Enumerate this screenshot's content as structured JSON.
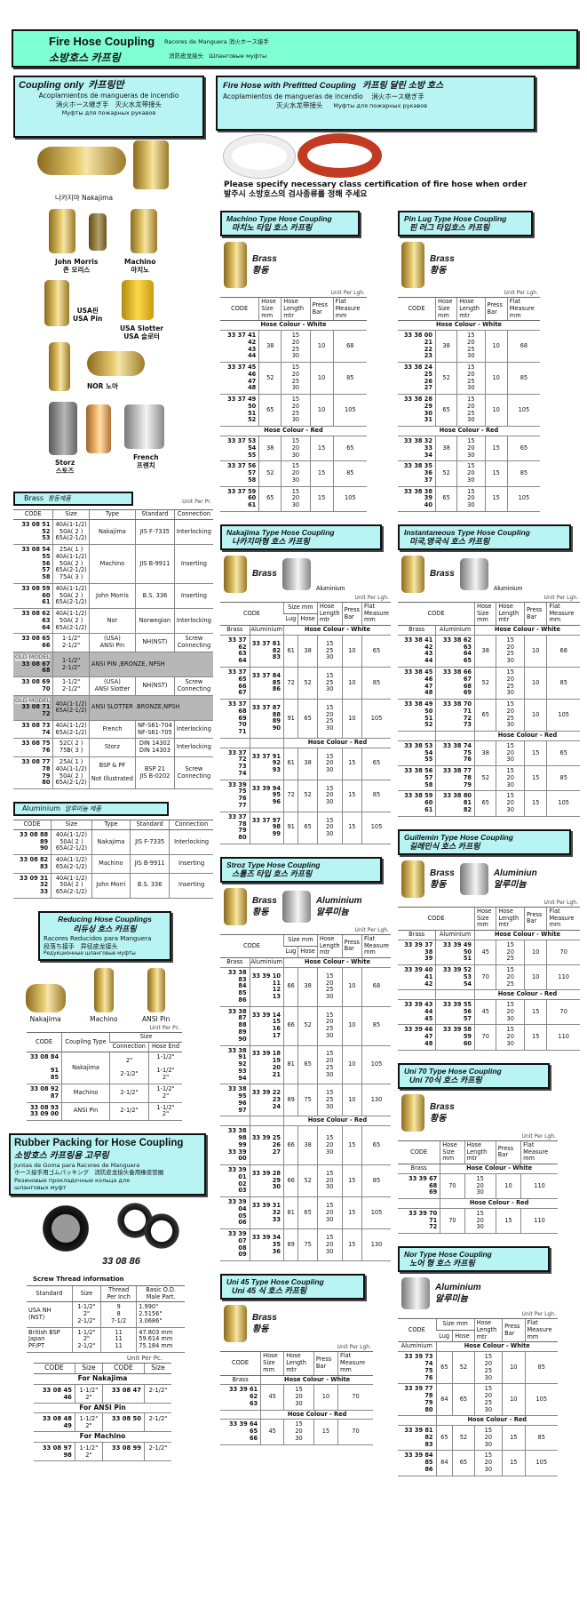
{
  "header": {
    "title_en": "Fire Hose Coupling",
    "title_ko": "소방호스 카프링",
    "sub_es": "Racores de Manguera",
    "sub_ja": "消火ホース接手",
    "sub_zh": "消防皮龙接头",
    "sub_ru": "Шланговые муфты"
  },
  "coupling_only": {
    "title_en": "Coupling only",
    "title_ko": "카프링만",
    "es": "Acoplamientos de mangueras de incendio",
    "ja": "消火ホース継ぎ手",
    "zh": "灭火水龙带接头",
    "ru": "Муфты для пожарных рукавов"
  },
  "prefitted": {
    "title_en": "Fire Hose with Prefitted Coupling",
    "title_ko": "카프링 달린 소방 호스",
    "es": "Acoplamientos de mangueras de incendio",
    "ja": "消火ホース継ぎ手",
    "zh": "灭火水龙带接头",
    "ru": "Муфты для пожарных рукавов"
  },
  "notice": {
    "en": "Please specify necessary class certification of fire hose when order",
    "ko": "발주시 소방호스의 검사종류를 정해 주세요"
  },
  "coupling_images": [
    "나카지마  Nakajima",
    "John Morris\n존 모리스",
    "Machino\n마치노",
    "USA핀\nUSA Pin",
    "USA Slotter\nUSA 슬로터",
    "NOR 노아",
    "Storz\n스토즈",
    "French\n프렌치"
  ],
  "brass": {
    "title": "Brass",
    "title_ko": "황동제품",
    "unit": "Unit Per Pr.",
    "columns": [
      "CODE",
      "Size",
      "Type",
      "Standard",
      "Connection"
    ],
    "rows": [
      [
        "33 08 51\n52\n53",
        "40A(1-1/2)\n50A( 2 )\n65A(2-1/2)",
        "Nakajima",
        "JIS F-7335",
        "Interlocking"
      ],
      [
        "33 08 54\n55\n56\n57\n58",
        "25A( 1 )\n40A(1-1/2)\n50A( 2 )\n65A(2-1/2)\n75A( 3 )",
        "Machino",
        "JIS B-9911",
        "Inserting"
      ],
      [
        "33 08 59\n60\n61",
        "40A(1-1/2)\n50A( 2 )\n65A(2-1/2)",
        "John Morris",
        "B.S. 336",
        "Inserting"
      ],
      [
        "33 08 62\n63\n64",
        "40A(1-1/2)\n50A( 2 )\n65A(2-1/2)",
        "Nor",
        "Norwegian",
        "Interlocking"
      ],
      [
        "33 08 65\n66",
        "1-1/2\"\n2-1/2\"",
        "(USA)\nANSI Pin",
        "NH(NST)",
        "Screw\nConnecting"
      ],
      {
        "old": "OLD MODEL",
        "code": "33 08 67\n68",
        "size": "1-1/2\"\n2-1/2\"",
        "note": "ANSI PIN ,BRONZE, NPSH"
      },
      [
        "33 08 69\n70",
        "1-1/2\"\n2-1/2\"",
        "(USA)\nANSI Slotter",
        "NH(NST)",
        "Screw\nConnecting"
      ],
      {
        "old": "OLD MODEL",
        "code": "33 08 71\n72",
        "size": "40A(1-1/2)\n65A(2-1/2)",
        "note": "ANSI SLOTTER  .BRONZE,NPSH"
      },
      [
        "33 08 73\n74",
        "40A(1-1/2)\n65A(2-1/2)",
        "French",
        "NF-S61-704\nNF-S61-705",
        "Interlocking"
      ],
      [
        "33 08 75\n76",
        "52C( 2 )\n75B( 3 )",
        "Storz",
        "DIN 14302\nDIN 14303",
        "Interlocking"
      ],
      [
        "33 08 77\n78\n79\n80",
        "25A( 1 )\n40A(1-1/2)\n50A( 2 )\n65A(2-1/2)",
        "BSP & PF\n\nNot Illustrated",
        "BSP 21\nJIS B-0202",
        "Screw\nConnecting"
      ]
    ]
  },
  "aluminium": {
    "title": "Aluminium",
    "title_ko": "알루미늄 제품",
    "columns": [
      "CODE",
      "Size",
      "Type",
      "Standard",
      "Connection"
    ],
    "rows": [
      [
        "33 08 88\n89\n90",
        "40A(1-1/2)\n50A( 2 )\n65A(2-1/2)",
        "Nakajima",
        "JIS F-7335",
        "Interlocking"
      ],
      [
        "33 08 82\n83",
        "40A(1-1/2)\n65A(2-1/2)",
        "Machino",
        "JIS B-9911",
        "Inserting"
      ],
      [
        "33 09 31\n32\n33",
        "40A(1-1/2)\n50A( 2 )\n65A(2-1/2)",
        "John Morri",
        "B.S. 336",
        "Inserting"
      ]
    ]
  },
  "reducing": {
    "title_en": "Reducing Hose Couplings",
    "title_ko": "리듀싱 호스 카프링",
    "es": "Racores Reducidos para Manguera",
    "ja": "段落ち接手",
    "zh": "异径皮龙接头",
    "ru": "Редукционные шланговые муфты",
    "images": [
      "Nakajima",
      "Machino",
      "ANSI Pin"
    ],
    "unit": "Unit Per Pc.",
    "columns": {
      "code": "CODE",
      "type": "Coupling Type",
      "size": "Size",
      "connection": "Connection",
      "hose_end": "Hose End"
    },
    "rows": [
      [
        "33 08 84\n\n91\n85",
        "Nakajima",
        "2\"\n\n2-1/2\"",
        "1-1/2\"\n\n1-1/2\"\n2\""
      ],
      [
        "33 08 92\n87",
        "Machino",
        "2-1/2\"",
        "1-1/2\"\n2\""
      ],
      [
        "33 08 93\n33 09 00",
        "ANSI Pin",
        "2-1/2\"",
        "1-1/2\"\n2\""
      ]
    ]
  },
  "rubber": {
    "title_en": "Rubber Packing for Hose Coupling",
    "title_ko": "소방호스 카프링용 고무링",
    "es": "Juntas de Goma para Racores de Manguera",
    "ja": "ホース接手用ゴムパッキング",
    "zh": "消防皮龙接头备用橡皮垫圈",
    "ru": "Резиновые прокладочные кольца для шланговых муфт",
    "code": "33 08 86",
    "thread_title": "Screw Thread information",
    "thread_columns": [
      "Standard",
      "Size",
      "Thread\nPer Inch",
      "Basic O.D.\nMale Part."
    ],
    "thread_rows": [
      [
        "USA NH\n(NST)",
        "1-1/2\"\n2\"\n2-1/2\"",
        "9\n8\n7-1/2",
        "1.990\"\n2.5156\"\n3.0686\""
      ],
      [
        "British BSP\nJapan\nPF/PT",
        "1-1/2\"\n2\"\n2-1/2\"",
        "11\n11\n11",
        "47.803 mm\n59.614 mm\n75.184 mm"
      ]
    ],
    "unit": "Unit Per Pc.",
    "code_columns": [
      "CODE",
      "Size",
      "CODE",
      "Size"
    ],
    "code_groups": [
      {
        "label": "For Nakajima",
        "row": [
          "33 08 45\n46",
          "1-1/2\"\n2\"",
          "33 08 47",
          "2-1/2\""
        ]
      },
      {
        "label": "For ANSI Pin",
        "row": [
          "33 08 48\n49",
          "1-1/2\"\n2\"",
          "33 08 50",
          "2-1/2\""
        ]
      },
      {
        "label": "For Machino",
        "row": [
          "33 08 97\n98",
          "1-1/2\"\n2\"",
          "33 08 99",
          "2-1/2\""
        ]
      }
    ]
  },
  "hose_tables": [
    {
      "id": "machino",
      "title_en": "Machino Type Hose Coupling",
      "title_ko": "마치노 타입 호스 카프링",
      "material": "Brass",
      "material_ko": "황동",
      "unit": "Unit Per Lgh.",
      "columns": [
        "CODE",
        "Hose\nSize\nmm",
        "Hose\nLength\nmtr",
        "Press\nBar",
        "Flat\nMeasure\nmm"
      ],
      "materials": [],
      "groups": [
        {
          "label": "Hose Colour - White",
          "rows": [
            [
              "33 37 41\n42\n43\n44",
              "38",
              "15\n20\n25\n30",
              "10",
              "68"
            ],
            [
              "33 37 45\n46\n47\n48",
              "52",
              "15\n20\n25\n30",
              "10",
              "85"
            ],
            [
              "33 37 49\n50\n51\n52",
              "65",
              "15\n20\n25\n30",
              "10",
              "105"
            ]
          ]
        },
        {
          "label": "Hose Colour - Red",
          "rows": [
            [
              "33 37 53\n54\n55",
              "38",
              "15\n20\n30",
              "15",
              "65"
            ],
            [
              "33 37 56\n57\n58",
              "52",
              "15\n20\n30",
              "15",
              "85"
            ],
            [
              "33 37 59\n60\n61",
              "65",
              "15\n20\n30",
              "15",
              "105"
            ]
          ]
        }
      ]
    },
    {
      "id": "pinlug",
      "title_en": "Pin Lug Type Hose Coupling",
      "title_ko": "핀 러그 타입호스 카프링",
      "material": "Brass",
      "material_ko": "황동",
      "unit": "Unit Per Lgh.",
      "columns": [
        "CODE",
        "Hose\nSize\nmm",
        "Hose\nLength\nmtr",
        "Press\nBar",
        "Flat\nMeasure\nmm"
      ],
      "materials": [],
      "groups": [
        {
          "label": "Hose Colour - White",
          "rows": [
            [
              "33 38 00\n21\n22\n23",
              "38",
              "15\n20\n25\n30",
              "10",
              "68"
            ],
            [
              "33 38 24\n25\n26\n27",
              "52",
              "15\n20\n25\n30",
              "10",
              "85"
            ],
            [
              "33 38 28\n29\n30\n31",
              "65",
              "15\n20\n25\n30",
              "10",
              "105"
            ]
          ]
        },
        {
          "label": "Hose Colour - Red",
          "rows": [
            [
              "33 38 32\n33\n34",
              "38",
              "15\n20\n30",
              "15",
              "65"
            ],
            [
              "33 38 35\n36\n37",
              "52",
              "15\n20\n30",
              "15",
              "85"
            ],
            [
              "33 38 38\n39\n40",
              "65",
              "15\n20\n30",
              "15",
              "105"
            ]
          ]
        }
      ]
    },
    {
      "id": "nakajima",
      "title_en": "Nakajima Type Hose Coupling",
      "title_ko": "나카지마형 호스 카프링",
      "material": "Brass",
      "material2": "Aluminium",
      "unit": "Unit Per Lgh.",
      "columns": [
        "CODE",
        {
          "label": "Size mm",
          "sub": [
            "Lug",
            "Hose"
          ]
        },
        "Hose\nLength\nmtr",
        "Press\nBar",
        "Flat\nMeasure\nmm"
      ],
      "materials": [
        "Brass",
        "Aluminium"
      ],
      "groups": [
        {
          "label": "Hose Colour - White",
          "rows": [
            [
              "33 37 62\n63\n64",
              "33 37 81\n82\n83",
              "61",
              "38",
              "15\n25\n30",
              "10",
              "65"
            ],
            [
              "33 37 65\n66\n67",
              "33 37 84\n85\n86",
              "72",
              "52",
              "15\n25\n30",
              "10",
              "85"
            ],
            [
              "33 37 68\n69\n70\n71",
              "33 37 87\n88\n89\n90",
              "91",
              "65",
              "15\n20\n25\n30",
              "10",
              "105"
            ]
          ]
        },
        {
          "label": "Hose Colour - Red",
          "rows": [
            [
              "33 37 72\n73\n74",
              "33 37 91\n92\n93",
              "61",
              "38",
              "15\n20\n30",
              "15",
              "65"
            ],
            [
              "33 39 75\n76\n77",
              "33 39 94\n95\n96",
              "72",
              "52",
              "15\n20\n30",
              "15",
              "85"
            ],
            [
              "33 37 78\n79\n80",
              "33 37 97\n98\n99",
              "91",
              "65",
              "15\n20\n30",
              "15",
              "105"
            ]
          ]
        }
      ]
    },
    {
      "id": "instant",
      "title_en": "Instantaneous Type  Hose Coupling",
      "title_ko": "미국,영국식 호스 카프링",
      "material": "Brass",
      "material2": "Aluminium",
      "unit": "Unit Per Lgh.",
      "columns": [
        "CODE",
        "Hose\nSize\nmm",
        "Hose\nLength\nmtr",
        "Press\nBar",
        "Flat\nMeasure\nmm"
      ],
      "materials": [
        "Brass",
        "Aluminium"
      ],
      "groups": [
        {
          "label": "Hose Colour - White",
          "rows": [
            [
              "33 38 41\n42\n43\n44",
              "33 38 62\n63\n64\n65",
              "38",
              "15\n20\n25\n30",
              "10",
              "68"
            ],
            [
              "33 38 45\n46\n47\n48",
              "33 38 66\n67\n68\n69",
              "52",
              "15\n20\n25\n30",
              "10",
              "85"
            ],
            [
              "33 38 49\n50\n51\n52",
              "33 38 70\n71\n72\n73",
              "65",
              "15\n20\n25\n30",
              "10",
              "105"
            ]
          ]
        },
        {
          "label": "Hose Colour - Red",
          "rows": [
            [
              "33 38 53\n54\n55",
              "33 38 74\n75\n76",
              "38",
              "15\n20\n30",
              "15",
              "65"
            ],
            [
              "33 38 56\n57\n58",
              "33 38 77\n78\n79",
              "52",
              "15\n20\n30",
              "15",
              "85"
            ],
            [
              "33 38 59\n60\n61",
              "33 38 80\n81\n82",
              "65",
              "15\n20\n30",
              "15",
              "105"
            ]
          ]
        }
      ]
    },
    {
      "id": "stroz",
      "title_en": "Stroz Type Hose Coupling",
      "title_ko": "스톨즈 타입 호스 카프링",
      "material": "Brass",
      "material_ko": "황동",
      "material2": "Aluminium",
      "material2_ko": "알루미늄",
      "unit": "Unit Per Lgh.",
      "columns": [
        "CODE",
        {
          "label": "Size mm",
          "sub": [
            "Lug",
            "Hose"
          ]
        },
        "Hose\nLength\nmtr",
        "Press\nBar",
        "Flat\nMeasure\nmm"
      ],
      "materials": [
        "Brass",
        "Aluminium"
      ],
      "groups": [
        {
          "label": "Hose Colour - White",
          "rows": [
            [
              "33 38 83\n84\n85\n86",
              "33 39 10\n11\n12\n13",
              "66",
              "38",
              "15\n20\n25\n30",
              "10",
              "68"
            ],
            [
              "33 38 87\n88\n89\n90",
              "33 39 14\n15\n16\n17",
              "66",
              "52",
              "15\n20\n25\n30",
              "10",
              "85"
            ],
            [
              "33 38 91\n92\n93\n94",
              "33 39 18\n19\n20\n21",
              "81",
              "65",
              "15\n20\n25\n30",
              "10",
              "105"
            ],
            [
              "33 38 95\n96\n97",
              "33 39 22\n23\n24",
              "89",
              "75",
              "15\n25\n30",
              "10",
              "130"
            ]
          ]
        },
        {
          "label": "Hose Colour - Red",
          "rows": [
            [
              "33 38 98\n99\n33 39 00",
              "33 39 25\n26\n27",
              "66",
              "38",
              "15\n20\n30",
              "15",
              "65"
            ],
            [
              "33 39 01\n02\n03",
              "33 39 28\n29\n30",
              "66",
              "52",
              "15\n20\n30",
              "15",
              "85"
            ],
            [
              "33 39 04\n05\n06",
              "33 39 31\n32\n33",
              "81",
              "65",
              "15\n20\n30",
              "15",
              "105"
            ],
            [
              "33 39 07\n08\n09",
              "33 39 34\n35\n36",
              "89",
              "75",
              "15\n20\n30",
              "15",
              "130"
            ]
          ]
        }
      ]
    },
    {
      "id": "guillemin",
      "title_en": "Guillemin Type  Hose Coupling",
      "title_ko": "길레민식 호스 카프링",
      "material": "Brass",
      "material_ko": "황동",
      "material2": "Aluminiun",
      "material2_ko": "알루미늄",
      "unit": "Unit Per Lgh.",
      "columns": [
        "CODE",
        "Hose\nSize\nmm",
        "Hose\nLength\nmtr",
        "Press\nBar",
        "Flat\nMeasure\nmm"
      ],
      "materials": [
        "Brass",
        "Aluminium"
      ],
      "groups": [
        {
          "label": "Hose Colour - White",
          "rows": [
            [
              "33 39 37\n38\n39",
              "33 39 49\n50\n51",
              "45",
              "15\n20\n25",
              "10",
              "70"
            ],
            [
              "33 39 40\n41\n42",
              "33 39 52\n53\n54",
              "70",
              "15\n20\n25",
              "10",
              "110"
            ]
          ]
        },
        {
          "label": "Hose Colour - Red",
          "rows": [
            [
              "33 39 43\n44\n45",
              "33 39 55\n56\n57",
              "45",
              "15\n20\n30",
              "15",
              "70"
            ],
            [
              "33 39 46\n47\n48",
              "33 39 58\n59\n60",
              "70",
              "15\n20\n30",
              "15",
              "110"
            ]
          ]
        }
      ]
    },
    {
      "id": "uni70",
      "title_en": "Uni 70  Type  Hose Coupling",
      "title_ko": "Uni 70식 호스 카프링",
      "material": "Brass",
      "material_ko": "황동",
      "unit": "Unit Per Lgh.",
      "columns": [
        "CODE",
        "Hose\nSize\nmm",
        "Hose\nLength\nmtr",
        "Press\nBar",
        "Flat\nMeasure\nmm"
      ],
      "materials": [
        "Brass"
      ],
      "groups": [
        {
          "label": "Hose Colour - White",
          "rows": [
            [
              "33 39 67\n68\n69",
              "70",
              "15\n20\n30",
              "10",
              "110"
            ]
          ]
        },
        {
          "label": "Hose Colour - Red",
          "rows": [
            [
              "33 39 70\n71\n72",
              "70",
              "15\n20\n30",
              "15",
              "110"
            ]
          ]
        }
      ]
    },
    {
      "id": "uni45",
      "title_en": "Uni 45 Type Hose Coupling",
      "title_ko": "Uni 45 식 호스 카프링",
      "material": "Brass",
      "material_ko": "황동",
      "unit": "Unit Per Lgh.",
      "columns": [
        "CODE",
        "Hose\nSize\nmm",
        "Hose\nLength\nmtr",
        "Press\nBar",
        "Flat\nMeasure\nmm"
      ],
      "materials": [
        "Brass"
      ],
      "groups": [
        {
          "label": "Hose Colour - White",
          "rows": [
            [
              "33 39 61\n62\n63",
              "45",
              "15\n20\n30",
              "10",
              "70"
            ]
          ]
        },
        {
          "label": "Hose Colour - Red",
          "rows": [
            [
              "33 39 64\n65\n66",
              "45",
              "15\n20\n30",
              "15",
              "70"
            ]
          ]
        }
      ]
    },
    {
      "id": "nor",
      "title_en": "Nor Type Hose Coupling",
      "title_ko": "노어 형 호스 카프링",
      "material": "Aluminium",
      "material_ko": "알루미늄",
      "unit": "Unit Per Lgh.",
      "columns": [
        "CODE",
        {
          "label": "Size mm",
          "sub": [
            "Lug",
            "Hose"
          ]
        },
        "Hose\nLength\nmtr",
        "Press\nBar",
        "Flat\nMeasure\nmm"
      ],
      "materials": [
        "Aluminium"
      ],
      "groups": [
        {
          "label": "Hose Colour - White",
          "rows": [
            [
              "33 39 73\n74\n75\n76",
              "65",
              "52",
              "15\n20\n25\n30",
              "10",
              "85"
            ],
            [
              "33 39 77\n78\n79\n80",
              "84",
              "65",
              "15\n20\n25\n30",
              "10",
              "105"
            ]
          ]
        },
        {
          "label": "Hose Colour - Red",
          "rows": [
            [
              "33 39 81\n82\n83",
              "65",
              "52",
              "15\n20\n30",
              "15",
              "85"
            ],
            [
              "33 39 84\n85\n86",
              "84",
              "65",
              "15\n20\n30",
              "15",
              "105"
            ]
          ]
        }
      ]
    }
  ],
  "colors": {
    "banner": "#7fffd4",
    "box": "#b8f4f4",
    "brass": "#d4b24c",
    "old_model": "#b7b7b7"
  }
}
